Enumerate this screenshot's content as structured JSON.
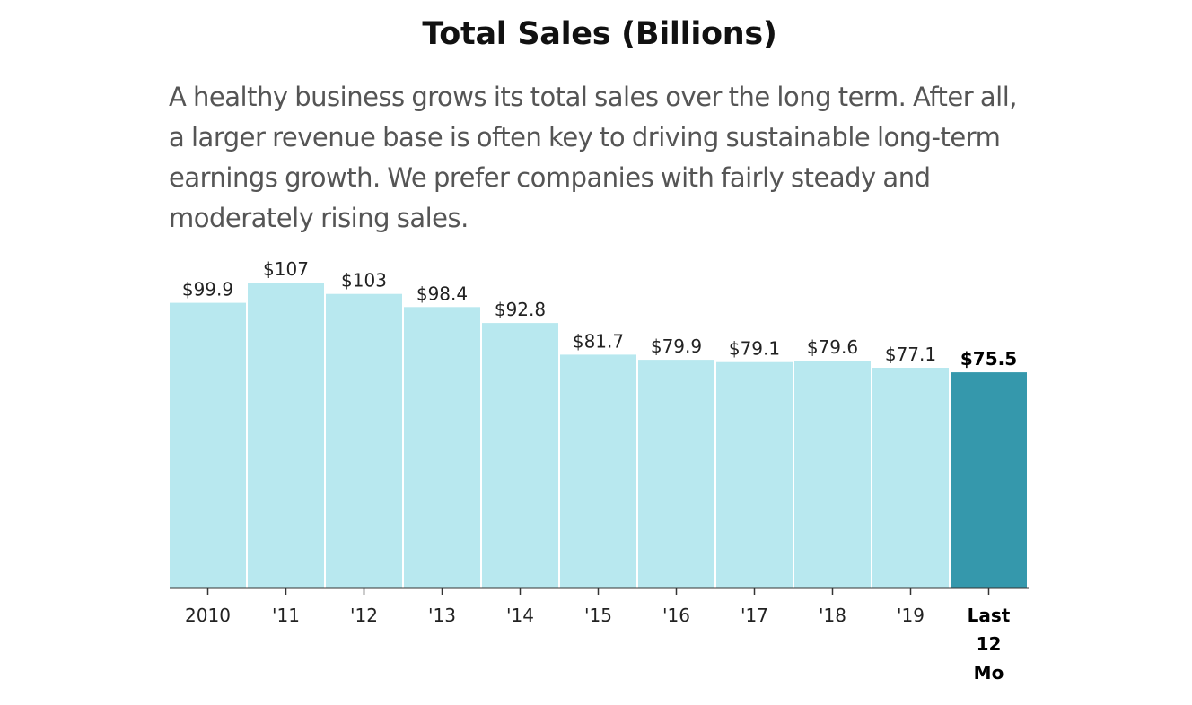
{
  "chart_data": {
    "type": "bar",
    "title": "Total Sales (Billions)",
    "subtitle": "A healthy business grows its total sales over the long term. After all, a larger revenue base is often key to driving sustainable long-term earnings growth. We prefer companies with fairly steady and moderately rising sales.",
    "categories": [
      "2010",
      "'11",
      "'12",
      "'13",
      "'14",
      "'15",
      "'16",
      "'17",
      "'18",
      "'19",
      "Last 12 Mo"
    ],
    "category_lines": [
      [
        "2010"
      ],
      [
        "'11"
      ],
      [
        "'12"
      ],
      [
        "'13"
      ],
      [
        "'14"
      ],
      [
        "'15"
      ],
      [
        "'16"
      ],
      [
        "'17"
      ],
      [
        "'18"
      ],
      [
        "'19"
      ],
      [
        "Last",
        "12",
        "Mo"
      ]
    ],
    "values": [
      99.9,
      107,
      103,
      98.4,
      92.8,
      81.7,
      79.9,
      79.1,
      79.6,
      77.1,
      75.5
    ],
    "value_labels": [
      "$99.9",
      "$107",
      "$103",
      "$98.4",
      "$92.8",
      "$81.7",
      "$79.9",
      "$79.1",
      "$79.6",
      "$77.1",
      "$75.5"
    ],
    "highlight_index": 10,
    "ylim": [
      0,
      107
    ],
    "xlabel": "",
    "ylabel": "",
    "grid": false,
    "colors": {
      "bar": "#b8e8ef",
      "highlight": "#3598ac",
      "axis": "#333333"
    }
  }
}
